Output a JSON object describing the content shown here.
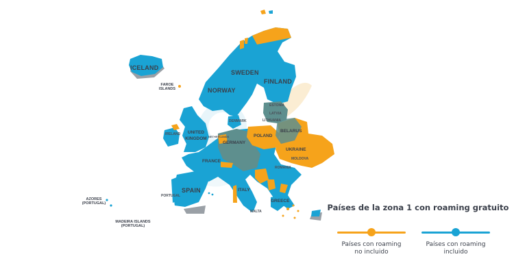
{
  "colors": {
    "included": "#1aa3d4",
    "not_included": "#f6a31b",
    "overlap": "#5e8f8e",
    "shadow": "#9aa0a6",
    "watermark": "#f7dfae"
  },
  "map_labels": {
    "iceland": "ICELAND",
    "faroe": "FAROE ISLANDS",
    "norway": "NORWAY",
    "sweden": "SWEDEN",
    "finland": "FINLAND",
    "estonia": "ESTONIA",
    "latvia": "LATVIA",
    "lithuania": "LITHUANIA",
    "denmark": "DENMARK",
    "belarus": "BELARUS",
    "united_kingdom": "UNITED KINGDOM",
    "ireland": "IRELAND",
    "netherlands": "NETHERLANDS",
    "germany": "GERMANY",
    "poland": "POLAND",
    "ukraine": "UKRAINE",
    "moldova": "MOLDOVA",
    "france": "FRANCE",
    "romania": "ROMANIA",
    "spain": "SPAIN",
    "portugal": "PORTUGAL",
    "italy": "ITALY",
    "greece": "GREECE",
    "malta": "MALTA",
    "azores": "AZORES (PORTUGAL)",
    "madeira": "MADEIRA ISLANDS (PORTUGAL)"
  },
  "legend": {
    "title": "Países de la zona 1 con roaming gratuito",
    "not_included_line1": "Países con roaming",
    "not_included_line2": "no incluido",
    "included_line1": "Países con roaming",
    "included_line2": "incluido"
  }
}
